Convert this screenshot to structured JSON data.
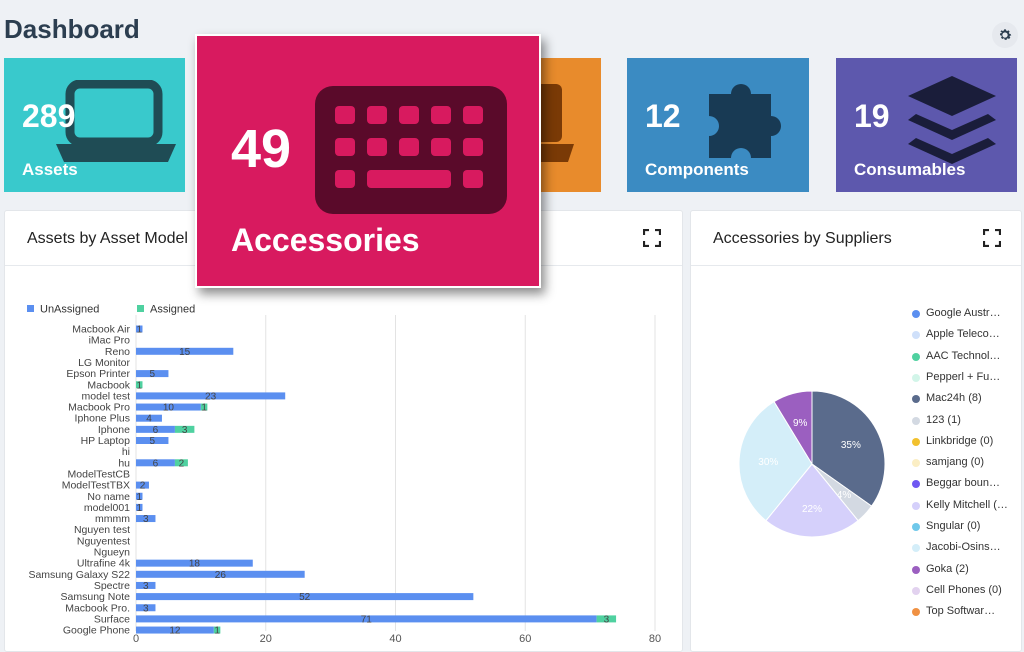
{
  "page_title": "Dashboard",
  "tiles": [
    {
      "name": "assets",
      "count": "289",
      "label": "Assets",
      "color": "#39c9cc",
      "icon": "laptop-icon"
    },
    {
      "name": "licenses",
      "count": "",
      "label": "",
      "color": "#e88b2c",
      "icon": "license-icon"
    },
    {
      "name": "components",
      "count": "12",
      "label": "Components",
      "color": "#3b8bc2",
      "icon": "puzzle-icon"
    },
    {
      "name": "consumables",
      "count": "19",
      "label": "Consumables",
      "color": "#5d58ad",
      "icon": "layers-icon"
    }
  ],
  "popup": {
    "count": "49",
    "label": "Accessories",
    "color": "#d81a5f",
    "icon": "keyboard-icon"
  },
  "panels": {
    "asset_models": {
      "title": "Assets by Asset Model"
    },
    "accessories_suppliers": {
      "title": "Accessories by Suppliers"
    }
  },
  "chart_data": [
    {
      "type": "bar",
      "orientation": "horizontal",
      "stacked": true,
      "categories": [
        "Macbook Air",
        "iMac Pro",
        "Reno",
        "LG Monitor",
        "Epson Printer",
        "Macbook",
        "model test",
        "Macbook Pro",
        "Iphone Plus",
        "Iphone",
        "HP Laptop",
        "hi",
        "hu",
        "ModelTestCB",
        "ModelTestTBX",
        "No name",
        "model001",
        "mmmm",
        "Nguyen test",
        "Nguyentest",
        "Ngueyn",
        "Ultrafine 4k",
        "Samsung Galaxy S22",
        "Spectre",
        "Samsung Note",
        "Macbook Pro.",
        "Surface",
        "Google Phone"
      ],
      "series": [
        {
          "name": "UnAssigned",
          "color": "#5b8ff0",
          "values": [
            1,
            0,
            15,
            0,
            5,
            0,
            23,
            10,
            4,
            6,
            5,
            0,
            6,
            0,
            2,
            1,
            1,
            3,
            0,
            0,
            0,
            18,
            26,
            3,
            52,
            3,
            71,
            12
          ]
        },
        {
          "name": "Assigned",
          "color": "#4fd1a0",
          "values": [
            0,
            0,
            0,
            0,
            0,
            1,
            0,
            1,
            0,
            3,
            0,
            0,
            2,
            0,
            0,
            0,
            0,
            0,
            0,
            0,
            0,
            0,
            0,
            0,
            0,
            0,
            3,
            1
          ]
        }
      ],
      "xlim": [
        0,
        80
      ],
      "xticks": [
        "0",
        "20",
        "40",
        "60",
        "80"
      ],
      "legend_position": "top-left",
      "grid": true
    },
    {
      "type": "pie",
      "slices": [
        {
          "label": "Google Austr…",
          "value": 0,
          "color": "#5b8ff0"
        },
        {
          "label": "Apple Teleco…",
          "value": 0,
          "color": "#cfe0fa"
        },
        {
          "label": "AAC Technol…",
          "value": 0,
          "color": "#4fd1a0"
        },
        {
          "label": "Pepperl + Fu…",
          "value": 0,
          "color": "#d2f5e9"
        },
        {
          "label": "Mac24h (8)",
          "value": 8,
          "color": "#5a6b8c",
          "pct": "35%"
        },
        {
          "label": "123 (1)",
          "value": 1,
          "color": "#d3d9e2",
          "pct": "4%"
        },
        {
          "label": "Linkbridge (0)",
          "value": 0,
          "color": "#f2c12e"
        },
        {
          "label": "samjang (0)",
          "value": 0,
          "color": "#fbeec4"
        },
        {
          "label": "Beggar boun…",
          "value": 0,
          "color": "#6f58f2"
        },
        {
          "label": "Kelly Mitchell (…",
          "value": 5,
          "color": "#d5d0fb",
          "pct": "22%"
        },
        {
          "label": "Sngular (0)",
          "value": 0,
          "color": "#6fc8ea"
        },
        {
          "label": "Jacobi-Osins…",
          "value": 7,
          "color": "#d4eef9",
          "pct": "30%"
        },
        {
          "label": "Goka (2)",
          "value": 2,
          "color": "#9b5fc0",
          "pct": "9%"
        },
        {
          "label": "Cell Phones (0)",
          "value": 0,
          "color": "#e2d2ef"
        },
        {
          "label": "Top Softwar…",
          "value": 0,
          "color": "#f09143"
        }
      ],
      "legend_position": "right"
    }
  ]
}
